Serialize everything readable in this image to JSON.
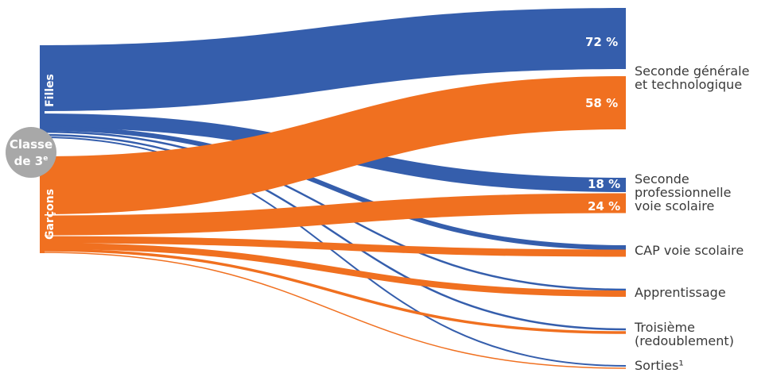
{
  "origin": {
    "line1": "Classe",
    "line2": "de 3",
    "sup": "e"
  },
  "groups": [
    {
      "name": "Filles",
      "color": "#355eac"
    },
    {
      "name": "Garçons",
      "color": "#f07020"
    }
  ],
  "destinations": [
    "Seconde générale\net technologique",
    "Seconde\nprofessionnelle\nvoie scolaire",
    "CAP voie scolaire",
    "Apprentissage",
    "Troisième\n(redoublement)",
    "Sorties¹"
  ],
  "percent_labels": [
    {
      "group": "Filles",
      "destination": "Seconde générale et technologique",
      "text": "72 %"
    },
    {
      "group": "Garçons",
      "destination": "Seconde générale et technologique",
      "text": "58 %"
    },
    {
      "group": "Filles",
      "destination": "Seconde professionnelle voie scolaire",
      "text": "18 %"
    },
    {
      "group": "Garçons",
      "destination": "Seconde professionnelle voie scolaire",
      "text": "24 %"
    }
  ]
}
